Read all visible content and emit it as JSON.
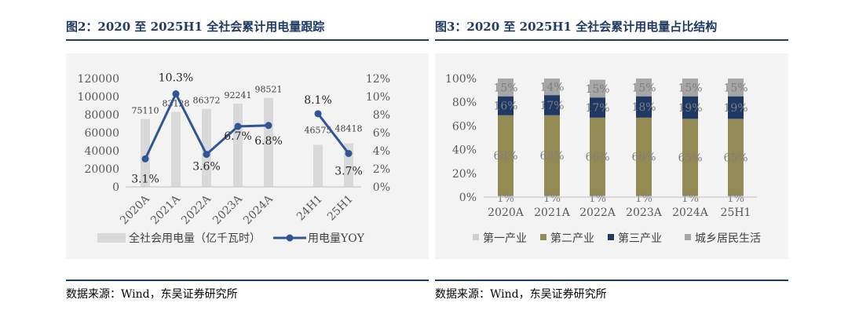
{
  "left": {
    "title": "图2：2020 至 2025H1 全社会累计用电量跟踪",
    "source": "数据来源：Wind，东吴证券研究所",
    "chart_data": {
      "type": "bar+line",
      "categories": [
        "2020A",
        "2021A",
        "2022A",
        "2023A",
        "2024A",
        "24H1",
        "25H1"
      ],
      "series": [
        {
          "name": "全社会用电量（亿千瓦时）",
          "type": "bar",
          "axis": "left",
          "values": [
            75110,
            83128,
            86372,
            92241,
            98521,
            46575,
            48418
          ],
          "labels": [
            "75110",
            "83128",
            "86372",
            "92241",
            "98521",
            "46575",
            "48418"
          ]
        },
        {
          "name": "用电量YOY",
          "type": "line",
          "axis": "right",
          "values": [
            3.1,
            10.3,
            3.6,
            6.7,
            6.8,
            8.1,
            3.7
          ],
          "labels": [
            "3.1%",
            "10.3%",
            "3.6%",
            "6.7%",
            "6.8%",
            "8.1%",
            "3.7%"
          ]
        }
      ],
      "y_left": {
        "lim": [
          0,
          120000
        ],
        "ticks": [
          "0",
          "20000",
          "40000",
          "60000",
          "80000",
          "100000",
          "120000"
        ]
      },
      "y_right": {
        "lim": [
          0,
          12
        ],
        "ticks": [
          "0%",
          "2%",
          "4%",
          "6%",
          "8%",
          "10%",
          "12%"
        ]
      },
      "colors": {
        "bar": "#d9d9d9",
        "line": "#2f5597"
      },
      "legend_position": "bottom"
    }
  },
  "right": {
    "title": "图3：2020 至 2025H1 全社会累计用电量占比结构",
    "source": "数据来源：Wind，东吴证券研究所",
    "chart_data": {
      "type": "stacked-bar",
      "categories": [
        "2020A",
        "2021A",
        "2022A",
        "2023A",
        "2024A",
        "25H1"
      ],
      "series": [
        {
          "name": "第一产业",
          "values": [
            1,
            1,
            1,
            1,
            1,
            1
          ],
          "color": "#cfcfcf"
        },
        {
          "name": "第二产业",
          "values": [
            68,
            68,
            66,
            66,
            65,
            65
          ],
          "color": "#948a54"
        },
        {
          "name": "第三产业",
          "values": [
            16,
            17,
            17,
            18,
            19,
            19
          ],
          "color": "#1f3864"
        },
        {
          "name": "城乡居民生活",
          "values": [
            15,
            14,
            15,
            15,
            15,
            15
          ],
          "color": "#a6a6a6"
        }
      ],
      "y_lim": [
        0,
        100
      ],
      "y_ticks": [
        "0%",
        "20%",
        "40%",
        "60%",
        "80%",
        "100%"
      ],
      "legend_position": "bottom"
    }
  }
}
